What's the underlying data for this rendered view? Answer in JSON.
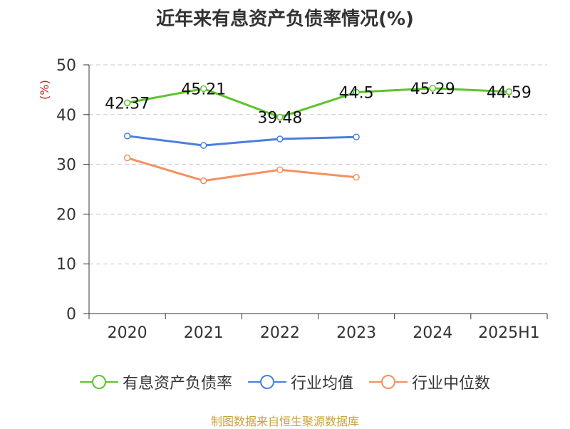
{
  "title": "近年来有息资产负债率情况(%)",
  "source": "制图数据来自恒生聚源数据库",
  "chart_data": {
    "type": "line",
    "title": "近年来有息资产负债率情况(%)",
    "categories": [
      "2020",
      "2021",
      "2022",
      "2023",
      "2024",
      "2025H1"
    ],
    "ylabel": "(%)",
    "ylim": [
      0,
      50
    ],
    "yticks": [
      0,
      10,
      20,
      30,
      40,
      50
    ],
    "grid": true,
    "legend_position": "bottom",
    "series": [
      {
        "name": "有息资产负债率",
        "color": "#5cc42e",
        "values": [
          42.37,
          45.21,
          39.48,
          44.5,
          45.29,
          44.59
        ],
        "labels": [
          "42.37",
          "45.21",
          "39.48",
          "44.5",
          "45.29",
          "44.59"
        ],
        "show_labels": true
      },
      {
        "name": "行业均值",
        "color": "#4a7fdc",
        "values": [
          35.7,
          33.8,
          35.1,
          35.5,
          null,
          null
        ],
        "show_labels": false
      },
      {
        "name": "行业中位数",
        "color": "#f49060",
        "values": [
          31.3,
          26.7,
          28.9,
          27.4,
          null,
          null
        ],
        "show_labels": false
      }
    ]
  }
}
